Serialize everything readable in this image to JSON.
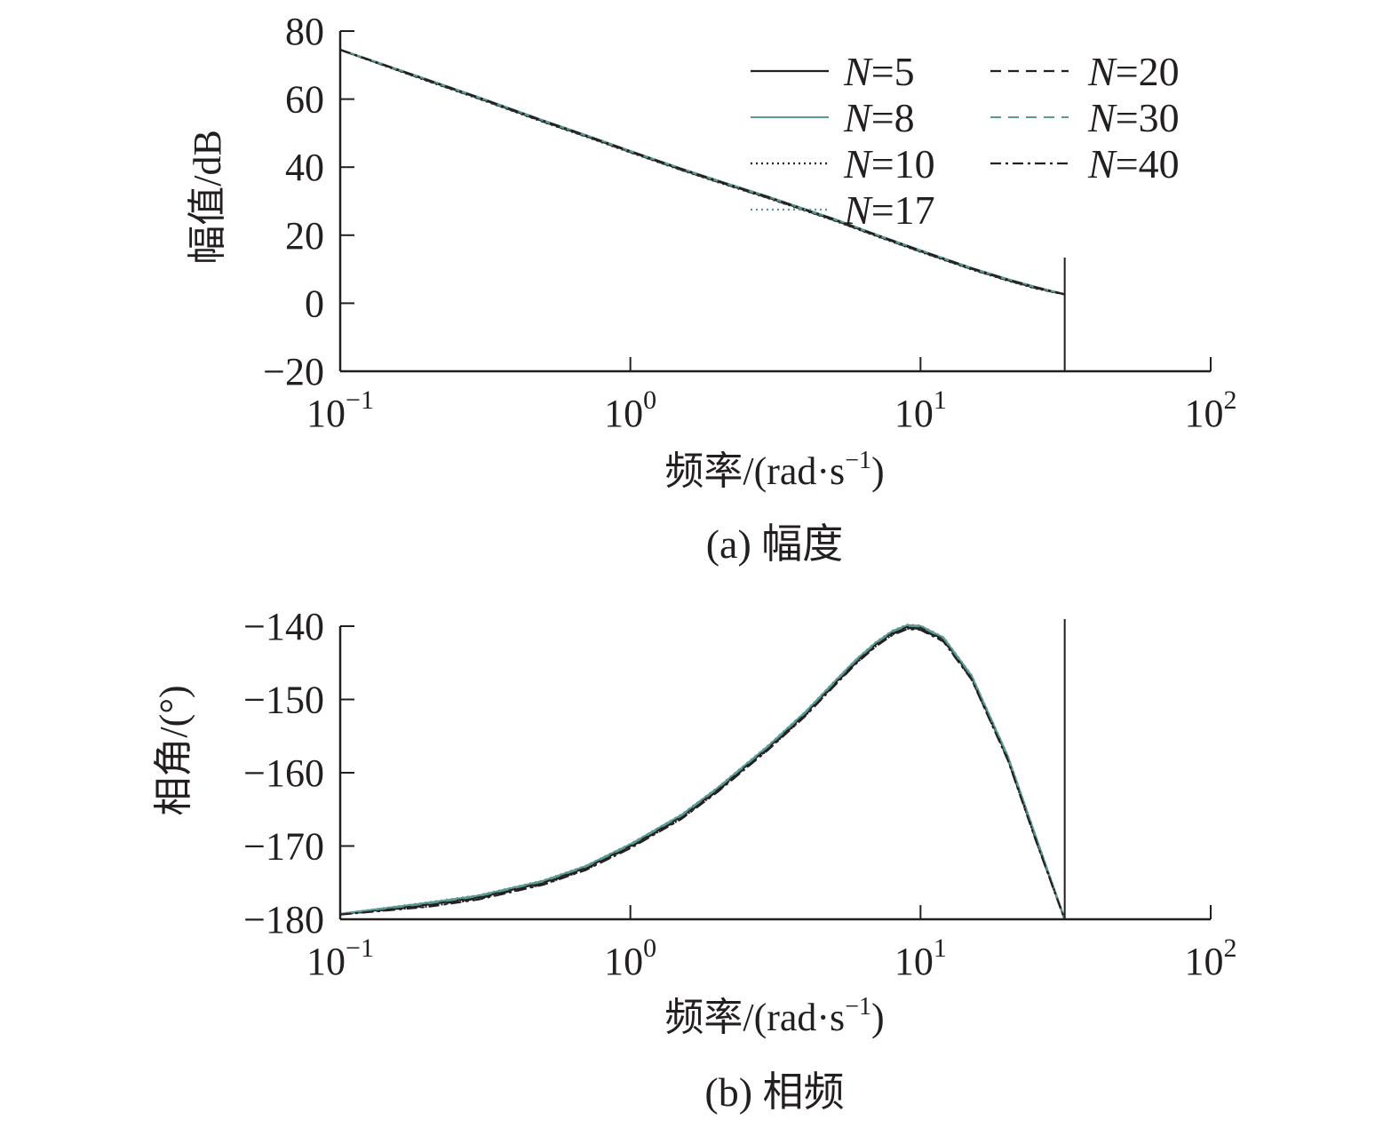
{
  "figure": {
    "caption_a": "(a) 幅度",
    "caption_b": "(b) 相频"
  },
  "chart_data": [
    {
      "type": "line",
      "title": "",
      "xlabel": "频率/(rad·s−1)",
      "xlabel_main": "频率/(rad·s",
      "xlabel_sup": "−1",
      "xlabel_tail": ")",
      "ylabel": "幅值/dB",
      "xscale": "log",
      "xlim": [
        0.1,
        100
      ],
      "ylim": [
        -20,
        80
      ],
      "xticks": [
        {
          "value": 0.1,
          "base": "10",
          "exp": "−1"
        },
        {
          "value": 1,
          "base": "10",
          "exp": "0"
        },
        {
          "value": 10,
          "base": "10",
          "exp": "1"
        },
        {
          "value": 100,
          "base": "10",
          "exp": "2"
        }
      ],
      "yticks": [
        {
          "value": 80,
          "label": "80"
        },
        {
          "value": 60,
          "label": "60"
        },
        {
          "value": 40,
          "label": "40"
        },
        {
          "value": 20,
          "label": "20"
        },
        {
          "value": 0,
          "label": "0"
        },
        {
          "value": -20,
          "label": "−20"
        }
      ],
      "cutoff_x": 31.4,
      "legend_position": "top-right",
      "x": [
        0.1,
        0.2,
        0.3,
        0.5,
        0.7,
        1,
        1.5,
        2,
        3,
        4,
        5,
        7,
        10,
        15,
        20,
        25,
        31.4
      ],
      "series": [
        {
          "name": "N=5",
          "label_var": "N",
          "label_rest": "=5",
          "color": "#231f20",
          "dash": "",
          "width": 2.2,
          "offset": 0.0
        },
        {
          "name": "N=8",
          "label_var": "N",
          "label_rest": "=8",
          "color": "#5b9a94",
          "dash": "",
          "width": 2.0,
          "offset": 0.3
        },
        {
          "name": "N=10",
          "label_var": "N",
          "label_rest": "=10",
          "color": "#231f20",
          "dash": "2 4",
          "width": 2.2,
          "offset": -0.2
        },
        {
          "name": "N=17",
          "label_var": "N",
          "label_rest": "=17",
          "color": "#5b9a94",
          "dash": "2 4",
          "width": 2.2,
          "offset": 0.2
        },
        {
          "name": "N=20",
          "label_var": "N",
          "label_rest": "=20",
          "color": "#231f20",
          "dash": "12 8",
          "width": 2.2,
          "offset": -0.1
        },
        {
          "name": "N=30",
          "label_var": "N",
          "label_rest": "=30",
          "color": "#5b9a94",
          "dash": "12 8",
          "width": 2.0,
          "offset": 0.1
        },
        {
          "name": "N=40",
          "label_var": "N",
          "label_rest": "=40",
          "color": "#231f20",
          "dash": "12 5 3 5",
          "width": 2.2,
          "offset": 0.15
        }
      ],
      "y": [
        74.5,
        65.5,
        60.3,
        53.5,
        49.2,
        44.5,
        39.3,
        35.8,
        31.0,
        27.4,
        24.6,
        20.0,
        15.3,
        10.1,
        6.8,
        4.5,
        2.6
      ]
    },
    {
      "type": "line",
      "title": "",
      "xlabel": "频率/(rad·s−1)",
      "xlabel_main": "频率/(rad·s",
      "xlabel_sup": "−1",
      "xlabel_tail": ")",
      "ylabel": "相角/(°)",
      "xscale": "log",
      "xlim": [
        0.1,
        100
      ],
      "ylim": [
        -180,
        -140
      ],
      "xticks": [
        {
          "value": 0.1,
          "base": "10",
          "exp": "−1"
        },
        {
          "value": 1,
          "base": "10",
          "exp": "0"
        },
        {
          "value": 10,
          "base": "10",
          "exp": "1"
        },
        {
          "value": 100,
          "base": "10",
          "exp": "2"
        }
      ],
      "yticks": [
        {
          "value": -140,
          "label": "−140"
        },
        {
          "value": -150,
          "label": "−150"
        },
        {
          "value": -160,
          "label": "−160"
        },
        {
          "value": -170,
          "label": "−170"
        },
        {
          "value": -180,
          "label": "−180"
        }
      ],
      "cutoff_x": 31.4,
      "x": [
        0.1,
        0.2,
        0.3,
        0.5,
        0.7,
        1,
        1.5,
        2,
        3,
        4,
        5,
        6,
        7,
        8,
        9,
        10,
        12,
        15,
        20,
        25,
        31.4
      ],
      "y": [
        -179.3,
        -178.0,
        -177.0,
        -175.0,
        -173.0,
        -170.0,
        -166.0,
        -162.3,
        -156.5,
        -152.0,
        -148.0,
        -144.8,
        -142.5,
        -140.9,
        -140.1,
        -140.2,
        -141.8,
        -147.0,
        -158.0,
        -169.0,
        -180.0
      ],
      "series_offsets": [
        0.0,
        0.25,
        -0.25,
        0.3,
        -0.15,
        0.15,
        -0.3
      ]
    }
  ]
}
